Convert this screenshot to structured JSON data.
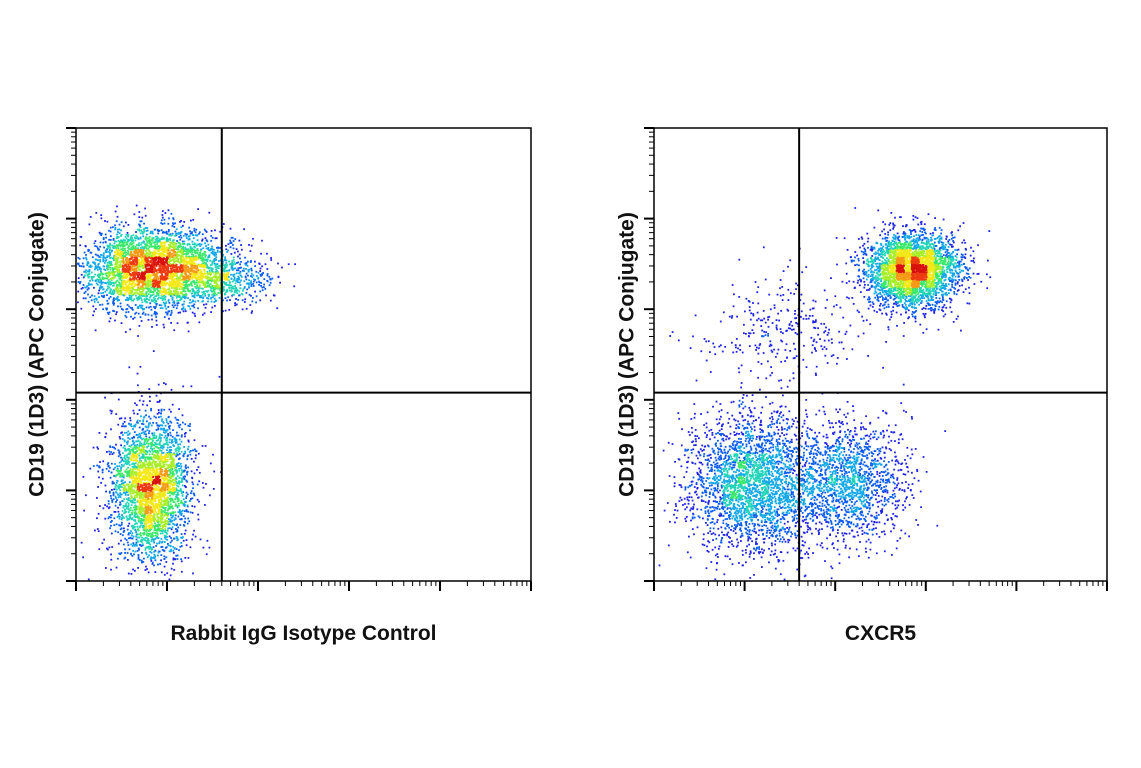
{
  "chart_data": [
    {
      "type": "scatter",
      "xlabel": "Rabbit IgG Isotype Control",
      "ylabel": "CD19 (1D3) (APC Conjugate)",
      "xscale": "log",
      "yscale": "log",
      "xlim": [
        10,
        1000000
      ],
      "ylim": [
        10,
        1000000
      ],
      "quadrant_gate": {
        "x": 400,
        "y": 1200
      },
      "colormap": [
        "#1e22e6",
        "#0a5cf0",
        "#12a8e8",
        "#22d4b8",
        "#3be86a",
        "#a8ee2a",
        "#f4e818",
        "#f59a14",
        "#ee3a12",
        "#d8120e"
      ],
      "populations": [
        {
          "name": "",
          "center": [
            70,
            28000
          ],
          "spread": [
            0.38,
            0.22
          ],
          "points": 3600
        },
        {
          "name": "",
          "center": [
            400,
            22000
          ],
          "spread": [
            0.28,
            0.14
          ],
          "points": 500
        },
        {
          "name": "",
          "center": [
            65,
            110
          ],
          "spread": [
            0.22,
            0.4
          ],
          "points": 3000
        }
      ]
    },
    {
      "type": "scatter",
      "xlabel": "CXCR5",
      "ylabel": "CD19 (1D3) (APC Conjugate)",
      "xscale": "log",
      "yscale": "log",
      "xlim": [
        10,
        1000000
      ],
      "ylim": [
        10,
        1000000
      ],
      "quadrant_gate": {
        "x": 400,
        "y": 1200
      },
      "colormap": [
        "#1e22e6",
        "#0a5cf0",
        "#12a8e8",
        "#22d4b8",
        "#3be86a",
        "#a8ee2a",
        "#f4e818",
        "#f59a14",
        "#ee3a12",
        "#d8120e"
      ],
      "populations": [
        {
          "name": "",
          "center": [
            7000,
            28000
          ],
          "spread": [
            0.26,
            0.2
          ],
          "points": 3200
        },
        {
          "name": "",
          "center": [
            120,
            120
          ],
          "spread": [
            0.35,
            0.38
          ],
          "points": 2600
        },
        {
          "name": "",
          "center": [
            1400,
            130
          ],
          "spread": [
            0.32,
            0.33
          ],
          "points": 1500
        },
        {
          "name": "",
          "center": [
            250,
            6000
          ],
          "spread": [
            0.45,
            0.28
          ],
          "points": 300
        }
      ]
    }
  ]
}
